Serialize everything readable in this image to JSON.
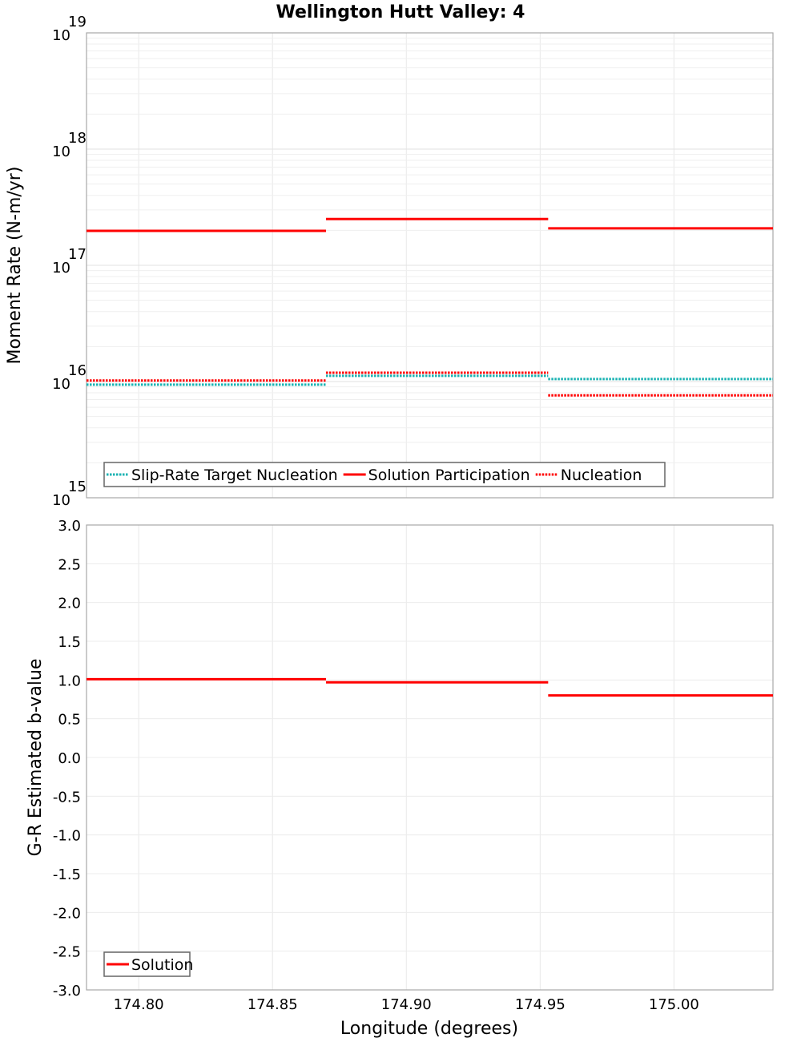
{
  "title": "Wellington Hutt Valley: 4",
  "chart_data": [
    {
      "type": "line",
      "title": "Wellington Hutt Valley: 4",
      "xlabel": "Longitude (degrees)",
      "ylabel": "Moment Rate (N-m/yr)",
      "yscale": "log",
      "ylim": [
        1000000000000000.0,
        1e+19
      ],
      "xlim": [
        174.7805,
        175.037
      ],
      "y_ticks": [
        {
          "base": "10",
          "exp": "15"
        },
        {
          "base": "10",
          "exp": "16"
        },
        {
          "base": "10",
          "exp": "17"
        },
        {
          "base": "10",
          "exp": "18"
        },
        {
          "base": "10",
          "exp": "19"
        }
      ],
      "x_ticks": [
        "174.80",
        "174.85",
        "174.90",
        "174.95",
        "175.00"
      ],
      "grid": true,
      "legend_position": "lower-left",
      "segments_x": [
        [
          174.7805,
          174.87
        ],
        [
          174.87,
          174.953
        ],
        [
          174.953,
          175.037
        ]
      ],
      "series": [
        {
          "name": "Slip-Rate Target Nucleation",
          "color": "#1ab3b3",
          "style": "dotted",
          "values": [
            9400000000000000.0,
            1.12e+16,
            1.05e+16
          ]
        },
        {
          "name": "Solution Participation",
          "color": "#ff0000",
          "style": "solid",
          "values": [
            1.98e+17,
            2.5e+17,
            2.08e+17
          ]
        },
        {
          "name": "Nucleation",
          "color": "#ff0000",
          "style": "dotted",
          "values": [
            1.02e+16,
            1.19e+16,
            7600000000000000.0
          ]
        }
      ]
    },
    {
      "type": "line",
      "title": "",
      "xlabel": "Longitude (degrees)",
      "ylabel": "G-R Estimated b-value",
      "ylim": [
        -3.0,
        3.0
      ],
      "xlim": [
        174.7805,
        175.037
      ],
      "y_ticks": [
        "3.0",
        "2.5",
        "2.0",
        "1.5",
        "1.0",
        "0.5",
        "0.0",
        "-0.5",
        "-1.0",
        "-1.5",
        "-2.0",
        "-2.5",
        "-3.0"
      ],
      "x_ticks": [
        "174.80",
        "174.85",
        "174.90",
        "174.95",
        "175.00"
      ],
      "grid": true,
      "legend_position": "lower-left",
      "segments_x": [
        [
          174.7805,
          174.87
        ],
        [
          174.87,
          174.953
        ],
        [
          174.953,
          175.037
        ]
      ],
      "series": [
        {
          "name": "Solution",
          "color": "#ff0000",
          "style": "solid",
          "values": [
            1.01,
            0.97,
            0.8
          ]
        }
      ]
    }
  ]
}
